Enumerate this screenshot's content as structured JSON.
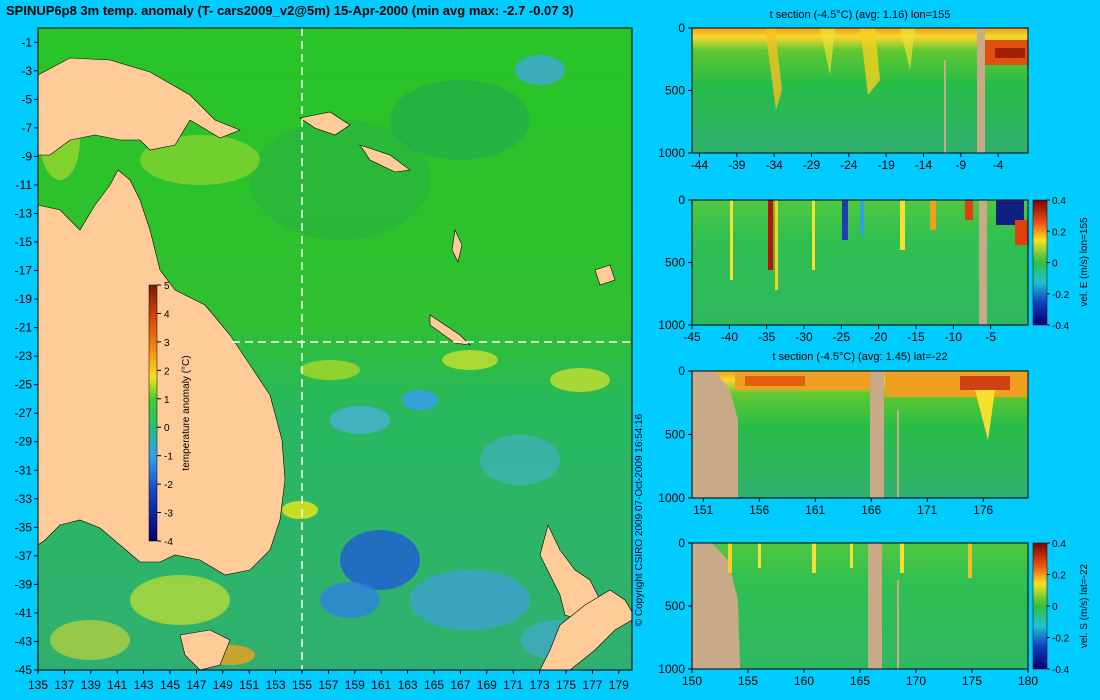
{
  "title": "SPINUP6p8 3m temp. anomaly (T- cars2009_v2@5m) 15-Apr-2000 (min avg max: -2.7 -0.07 3)",
  "copyright": "© Copyright CSIRO 2009   07-Oct-2009 16:54:16",
  "colors": {
    "background": "#00ccff",
    "land": "#ffcc99",
    "bathymetry": "#c8aa88"
  },
  "chart_data": [
    {
      "type": "heatmap",
      "id": "map",
      "title": "SPINUP6p8 3m temp. anomaly (T- cars2009_v2@5m) 15-Apr-2000 (min avg max: -2.7 -0.07 3)",
      "x_ticks": [
        135,
        137,
        139,
        141,
        143,
        145,
        147,
        149,
        151,
        153,
        155,
        157,
        159,
        161,
        163,
        165,
        167,
        169,
        171,
        173,
        175,
        177,
        179
      ],
      "y_ticks": [
        -1,
        -3,
        -5,
        -7,
        -9,
        -11,
        -13,
        -15,
        -17,
        -19,
        -21,
        -23,
        -25,
        -27,
        -29,
        -31,
        -33,
        -35,
        -37,
        -39,
        -41,
        -43,
        -45
      ],
      "xlim": [
        135,
        180
      ],
      "ylim": [
        -45,
        0
      ],
      "section_lon": 155,
      "section_lat": -22,
      "colorbar": {
        "label": "temperature anomaly (°C)",
        "ticks": [
          5,
          4,
          3,
          2,
          1,
          0,
          -1,
          -2,
          -3,
          -4
        ],
        "range": [
          -4,
          5
        ]
      },
      "stats": {
        "min": -2.7,
        "avg": -0.07,
        "max": 3
      }
    },
    {
      "type": "heatmap",
      "id": "p1",
      "title": "t section (-4.5°C) (avg: 1.16) lon=155",
      "x_ticks": [
        -44,
        -39,
        -34,
        -29,
        -24,
        -19,
        -14,
        -9,
        -4
      ],
      "y_ticks": [
        0,
        500,
        1000
      ],
      "xlim": [
        -45,
        0
      ],
      "ylim": [
        1000,
        0
      ]
    },
    {
      "type": "heatmap",
      "id": "p2",
      "title": "",
      "x_ticks": [
        -45,
        -40,
        -35,
        -30,
        -25,
        -20,
        -15,
        -10,
        -5
      ],
      "y_ticks": [
        0,
        500,
        1000
      ],
      "xlim": [
        -45,
        0
      ],
      "ylim": [
        1000,
        0
      ],
      "colorbar": {
        "label": "vel. E (m/s) lon=155",
        "ticks": [
          0.4,
          0.2,
          0,
          -0.2,
          -0.4
        ],
        "range": [
          -0.4,
          0.4
        ]
      }
    },
    {
      "type": "heatmap",
      "id": "p3",
      "title": "t section (-4.5°C) (avg: 1.45) lat=-22",
      "x_ticks": [
        151,
        156,
        161,
        166,
        171,
        176
      ],
      "y_ticks": [
        0,
        500,
        1000
      ],
      "xlim": [
        150,
        180
      ],
      "ylim": [
        1000,
        0
      ]
    },
    {
      "type": "heatmap",
      "id": "p4",
      "title": "",
      "x_ticks": [
        150,
        155,
        160,
        165,
        170,
        175,
        180
      ],
      "y_ticks": [
        0,
        500,
        1000
      ],
      "xlim": [
        150,
        180
      ],
      "ylim": [
        1000,
        0
      ],
      "colorbar": {
        "label": "vel. S (m/s) lat=-22",
        "ticks": [
          0.4,
          0.2,
          0,
          -0.2,
          -0.4
        ],
        "range": [
          -0.4,
          0.4
        ]
      }
    }
  ]
}
